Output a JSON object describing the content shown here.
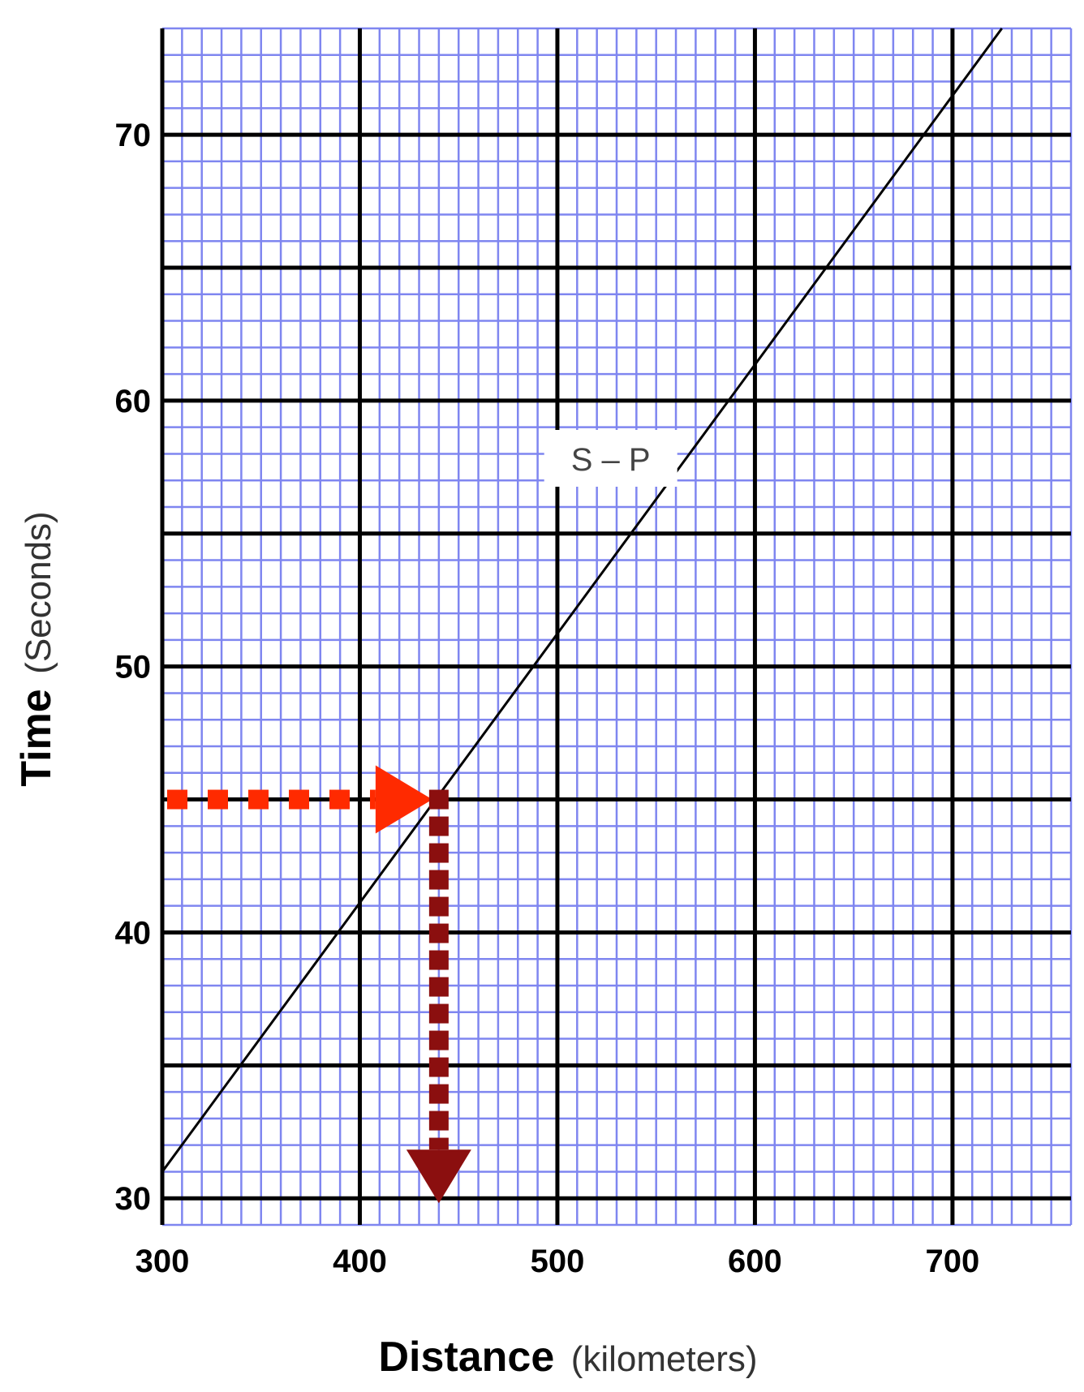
{
  "chart_data": {
    "type": "line",
    "xlabel": {
      "main": "Distance",
      "unit": "(kilometers)"
    },
    "ylabel": {
      "main": "Time",
      "unit": "(Seconds)"
    },
    "xlim": [
      300,
      760
    ],
    "ylim": [
      29,
      74
    ],
    "x_ticks": [
      300,
      400,
      500,
      600,
      700
    ],
    "y_ticks": [
      30,
      40,
      50,
      60,
      70
    ],
    "x_tick_labels": [
      "300",
      "400",
      "500",
      "600",
      "700"
    ],
    "y_tick_labels": [
      "30",
      "40",
      "50",
      "60",
      "70"
    ],
    "x_major_step": 100,
    "x_minor_step": 10,
    "y_major_step": 5,
    "y_minor_step": 1,
    "grid": true,
    "series": [
      {
        "name": "S – P",
        "x": [
          300,
          725
        ],
        "y": [
          31,
          74
        ]
      }
    ],
    "annotations": [
      {
        "type": "horizontal-arrow",
        "from": [
          300,
          45
        ],
        "to": [
          440,
          45
        ],
        "color": "#ff2a00"
      },
      {
        "type": "vertical-arrow",
        "from": [
          440,
          45
        ],
        "to": [
          440,
          30
        ],
        "color": "#8b0f0f"
      }
    ],
    "reading": {
      "x": 440,
      "y": 45
    },
    "colors": {
      "minor_grid": "#7f86f0",
      "major_grid": "#000000",
      "line": "#000000",
      "horizontal_arrow": "#ff2a00",
      "vertical_arrow": "#8b0f0f"
    }
  }
}
